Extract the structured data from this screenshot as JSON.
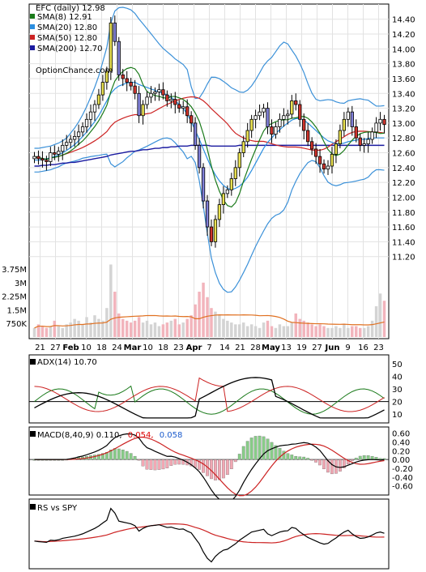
{
  "chart_data": [
    {
      "type": "candlestick",
      "title": "EFC (daily) 12.98",
      "watermark": "OptionChance.com",
      "legend": [
        {
          "label": "SMA(8) 12.91",
          "color": "#1a7a1a"
        },
        {
          "label": "SMA(20) 12.80",
          "color": "#2a8ee0"
        },
        {
          "label": "SMA(50) 12.80",
          "color": "#cc2222"
        },
        {
          "label": "SMA(200) 12.70",
          "color": "#1a1aa0"
        }
      ],
      "legend_position": "top-left",
      "ylim": [
        11.0,
        14.55
      ],
      "y_ticks": [
        "14.40",
        "14.20",
        "14.00",
        "13.80",
        "13.60",
        "13.40",
        "13.20",
        "13.00",
        "12.80",
        "12.60",
        "12.40",
        "12.20",
        "12.00",
        "11.80",
        "11.60",
        "11.40",
        "11.20"
      ],
      "x_ticks": [
        "21",
        "27",
        "Feb",
        "10",
        "18",
        "24",
        "Mar",
        "10",
        "18",
        "23",
        "Apr",
        "7",
        "14",
        "21",
        "28",
        "May",
        "13",
        "19",
        "27",
        "Jun",
        "9",
        "16",
        "23"
      ],
      "closes": [
        12.55,
        12.52,
        12.5,
        12.48,
        12.6,
        12.58,
        12.62,
        12.7,
        12.74,
        12.78,
        12.82,
        12.88,
        12.95,
        13.05,
        13.15,
        13.25,
        13.38,
        13.55,
        13.7,
        14.35,
        14.1,
        13.65,
        13.6,
        13.55,
        13.5,
        13.4,
        13.1,
        13.25,
        13.35,
        13.4,
        13.42,
        13.45,
        13.38,
        13.3,
        13.32,
        13.25,
        13.2,
        13.22,
        13.1,
        13.0,
        12.7,
        12.4,
        11.95,
        11.6,
        11.4,
        11.7,
        11.9,
        12.05,
        12.1,
        12.25,
        12.4,
        12.6,
        12.75,
        12.9,
        13.05,
        13.1,
        13.15,
        13.2,
        12.95,
        12.85,
        12.95,
        13.05,
        13.1,
        13.12,
        13.3,
        13.25,
        13.05,
        12.9,
        12.75,
        12.65,
        12.55,
        12.45,
        12.38,
        12.42,
        12.58,
        12.72,
        12.9,
        13.05,
        13.15,
        12.95,
        12.8,
        12.7,
        12.72,
        12.78,
        12.88,
        13.0,
        13.05,
        12.98
      ],
      "sma20": [
        12.5,
        12.5,
        12.51,
        12.52,
        12.53,
        12.55,
        12.57,
        12.6,
        12.63,
        12.67,
        12.71,
        12.76,
        12.82,
        12.88,
        12.95,
        13.02,
        13.1,
        13.2,
        13.3,
        13.4,
        13.46,
        13.5,
        13.52,
        13.54,
        13.55,
        13.55,
        13.52,
        13.5,
        13.48,
        13.46,
        13.44,
        13.42,
        13.4,
        13.38,
        13.35,
        13.3,
        13.25,
        13.2,
        13.12,
        13.02,
        12.9,
        12.78,
        12.65,
        12.52,
        12.4,
        12.3,
        12.22,
        12.16,
        12.12,
        12.1,
        12.12,
        12.15,
        12.2,
        12.27,
        12.36,
        12.46,
        12.56,
        12.66,
        12.74,
        12.8,
        12.86,
        12.91,
        12.96,
        13.0,
        13.04,
        13.06,
        13.06,
        13.04,
        13.0,
        12.95,
        12.9,
        12.85,
        12.8,
        12.76,
        12.74,
        12.72,
        12.72,
        12.73,
        12.75,
        12.76,
        12.77,
        12.78,
        12.78,
        12.79,
        12.8,
        12.8,
        12.8,
        12.8
      ],
      "sma200": [
        12.42,
        12.42,
        12.43,
        12.43,
        12.44,
        12.44,
        12.45,
        12.46,
        12.46,
        12.47,
        12.47,
        12.48,
        12.49,
        12.5,
        12.51,
        12.52,
        12.53,
        12.54,
        12.55,
        12.57,
        12.58,
        12.59,
        12.6,
        12.61,
        12.62,
        12.62,
        12.63,
        12.64,
        12.64,
        12.65,
        12.66,
        12.66,
        12.67,
        12.67,
        12.68,
        12.68,
        12.69,
        12.69,
        12.69,
        12.7,
        12.7,
        12.7,
        12.7,
        12.7,
        12.69,
        12.69,
        12.69,
        12.69,
        12.69,
        12.69,
        12.69,
        12.7,
        12.7,
        12.7,
        12.7,
        12.7,
        12.7,
        12.7,
        12.7,
        12.7,
        12.7,
        12.7,
        12.7,
        12.7,
        12.7,
        12.7,
        12.7,
        12.7,
        12.7,
        12.7,
        12.7,
        12.7,
        12.7,
        12.7,
        12.7,
        12.7,
        12.7,
        12.7,
        12.7,
        12.7,
        12.7,
        12.7,
        12.7,
        12.7,
        12.7,
        12.7,
        12.7,
        12.7
      ],
      "volume_ticks": [
        "3.75M",
        "3M",
        "2.25M",
        "1.5M",
        "750K"
      ],
      "volume": [
        0.5,
        0.7,
        0.6,
        0.5,
        0.6,
        0.9,
        0.6,
        0.5,
        0.7,
        0.8,
        1.0,
        0.9,
        0.7,
        1.1,
        0.8,
        1.2,
        1.0,
        0.9,
        1.6,
        4.0,
        2.5,
        1.3,
        1.0,
        0.9,
        0.8,
        0.9,
        1.1,
        0.8,
        0.9,
        0.7,
        0.8,
        0.6,
        0.7,
        0.8,
        0.9,
        1.0,
        0.7,
        0.8,
        1.0,
        1.2,
        1.8,
        2.5,
        3.0,
        2.2,
        1.6,
        1.4,
        1.2,
        1.0,
        0.9,
        0.8,
        0.7,
        0.7,
        0.8,
        0.6,
        0.7,
        0.6,
        0.5,
        0.8,
        0.9,
        0.6,
        0.5,
        0.7,
        0.6,
        0.6,
        0.8,
        1.3,
        1.0,
        0.9,
        0.8,
        0.7,
        0.6,
        0.7,
        0.6,
        0.5,
        0.5,
        0.6,
        0.5,
        0.7,
        0.5,
        0.6,
        0.6,
        0.5,
        0.5,
        0.6,
        0.9,
        1.7,
        2.4,
        2.0
      ]
    },
    {
      "type": "line",
      "title": "ADX(14) 10.70",
      "y_ticks": [
        "50",
        "40",
        "30",
        "20",
        "10"
      ],
      "ylim": [
        5,
        55
      ],
      "reference_line": 20
    },
    {
      "type": "line",
      "title": "MACD(8,40,9) 0.110,",
      "title_values": [
        {
          "text": "0.054,",
          "color": "#dd0000"
        },
        {
          "text": "0.058",
          "color": "#1a5acc"
        }
      ],
      "y_ticks": [
        "0.60",
        "0.40",
        "0.20",
        "0.00",
        "-0.20",
        "-0.40",
        "-0.60"
      ],
      "ylim": [
        -0.7,
        0.65
      ]
    },
    {
      "type": "line",
      "title": "RS vs SPY"
    }
  ]
}
